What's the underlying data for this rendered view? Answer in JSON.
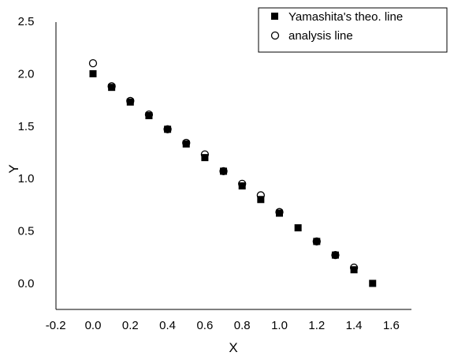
{
  "chart_data": {
    "type": "scatter",
    "xlabel": "X",
    "ylabel": "Y",
    "xlim": [
      -0.2,
      1.6
    ],
    "ylim": [
      -0.25,
      2.5
    ],
    "x_ticks": [
      "-0.2",
      "0.0",
      "0.2",
      "0.4",
      "0.6",
      "0.8",
      "1.0",
      "1.2",
      "1.4",
      "1.6"
    ],
    "y_ticks": [
      "0.0",
      "0.5",
      "1.0",
      "1.5",
      "2.0",
      "2.5"
    ],
    "grid": false,
    "legend_position": "top-right",
    "series": [
      {
        "name": "Yamashita's theo. line",
        "marker": "filled-square",
        "color": "#000000",
        "x": [
          0.0,
          0.1,
          0.2,
          0.3,
          0.4,
          0.5,
          0.6,
          0.7,
          0.8,
          0.9,
          1.0,
          1.1,
          1.2,
          1.3,
          1.4,
          1.5
        ],
        "y": [
          2.0,
          1.87,
          1.73,
          1.6,
          1.47,
          1.33,
          1.2,
          1.07,
          0.93,
          0.8,
          0.67,
          0.53,
          0.4,
          0.27,
          0.13,
          0.0
        ]
      },
      {
        "name": "analysis line",
        "marker": "open-circle",
        "color": "#000000",
        "x": [
          0.0,
          0.1,
          0.2,
          0.3,
          0.4,
          0.5,
          0.6,
          0.7,
          0.8,
          0.9,
          1.0,
          1.2,
          1.3,
          1.4
        ],
        "y": [
          2.1,
          1.88,
          1.74,
          1.61,
          1.47,
          1.34,
          1.23,
          1.07,
          0.95,
          0.84,
          0.68,
          0.4,
          0.27,
          0.15
        ]
      }
    ]
  }
}
